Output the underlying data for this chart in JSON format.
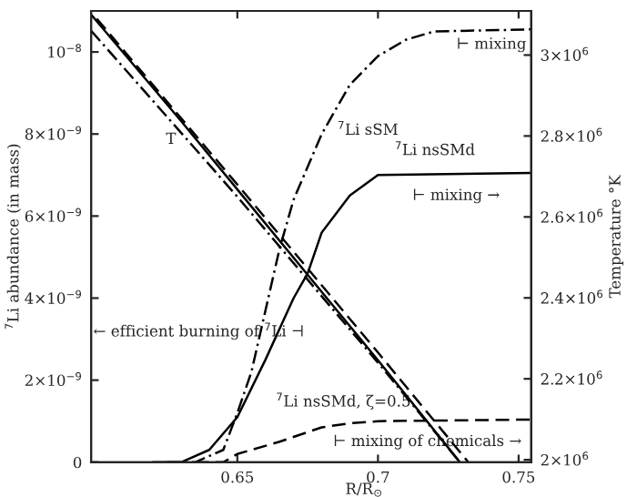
{
  "chart_data": {
    "type": "line",
    "xlabel": "R/R$_{⊙}$",
    "ylabel": "$^{7}$Li abundance (in mass)",
    "y2label": "Temperature °K",
    "xlim": [
      0.598,
      0.7545
    ],
    "xticks": [
      0.65,
      0.7,
      0.75
    ],
    "ylim": [
      0,
      1.1e-08
    ],
    "yticks": [
      0,
      {
        "value": 2e-09,
        "label": "2×10$^{−9}$"
      },
      {
        "value": 4e-09,
        "label": "4×10$^{−9}$"
      },
      {
        "value": 6e-09,
        "label": "6×10$^{−9}$"
      },
      {
        "value": 8e-09,
        "label": "8×10$^{−9}$"
      },
      {
        "value": 1e-08,
        "label": "10$^{−8}$"
      }
    ],
    "y2lim": [
      1994000,
      3109000
    ],
    "y2ticks": [
      {
        "value": 2000000,
        "label": "2×10$^{6}$"
      },
      {
        "value": 2200000,
        "label": "2.2×10$^{6}$"
      },
      {
        "value": 2400000,
        "label": "2.4×10$^{6}$"
      },
      {
        "value": 2600000,
        "label": "2.6×10$^{6}$"
      },
      {
        "value": 2800000,
        "label": "2.8×10$^{6}$"
      },
      {
        "value": 3000000,
        "label": "3×10$^{6}$"
      }
    ],
    "grid": false,
    "legend": false,
    "series": [
      {
        "color": "#000000",
        "line_style": "dashdot",
        "x": [
          0.625,
          0.635,
          0.645,
          0.65,
          0.655,
          0.66,
          0.665,
          0.67,
          0.68,
          0.69,
          0.7,
          0.71,
          0.72,
          0.7545
        ],
        "values": [
          0,
          0,
          3e-10,
          1.2e-09,
          2.2e-09,
          3.7e-09,
          5.2e-09,
          6.4e-09,
          8e-09,
          9.2e-09,
          9.9e-09,
          1.03e-08,
          1.05e-08,
          1.055e-08
        ]
      },
      {
        "color": "#000000",
        "line_style": "solid",
        "x": [
          0.62,
          0.63,
          0.64,
          0.65,
          0.66,
          0.67,
          0.675,
          0.68,
          0.69,
          0.7,
          0.7545
        ],
        "values": [
          0,
          0,
          3e-10,
          1.1e-09,
          2.5e-09,
          4e-09,
          4.6e-09,
          5.6e-09,
          6.5e-09,
          7e-09,
          7.05e-09
        ]
      },
      {
        "color": "#000000",
        "line_style": "dashed",
        "x": [
          0.635,
          0.645,
          0.65,
          0.665,
          0.68,
          0.69,
          0.7,
          0.7545
        ],
        "values": [
          0,
          0,
          2e-10,
          5e-10,
          8.5e-10,
          9.5e-10,
          1e-09,
          1.04e-09
        ]
      },
      {
        "color": "#000000",
        "line_style": "solid",
        "axis": "y2",
        "x": [
          0.598,
          0.63,
          0.65,
          0.7,
          0.729
        ],
        "values": [
          3100000,
          2837000,
          2668000,
          2246000,
          1995000
        ]
      },
      {
        "color": "#000000",
        "line_style": "dashed",
        "axis": "y2",
        "x": [
          0.6,
          0.65,
          0.7,
          0.732
        ],
        "values": [
          3090000,
          2680000,
          2265000,
          1995000
        ]
      },
      {
        "color": "#000000",
        "line_style": "dashdot",
        "axis": "y2",
        "x": [
          0.598,
          0.63,
          0.65,
          0.7,
          0.729
        ],
        "values": [
          3060000,
          2808000,
          2650000,
          2240000,
          1995000
        ]
      }
    ],
    "annotations": [
      "T",
      "$^{7}$Li sSM",
      "$^{7}$Li nsSMd",
      "$^{7}$Li nsSMd, ζ=0.5",
      "⊢ mixing",
      "⊢ mixing →",
      "← efficient burning of $^{7}$Li ⊣",
      "⊢ mixing of chemicals →"
    ]
  }
}
